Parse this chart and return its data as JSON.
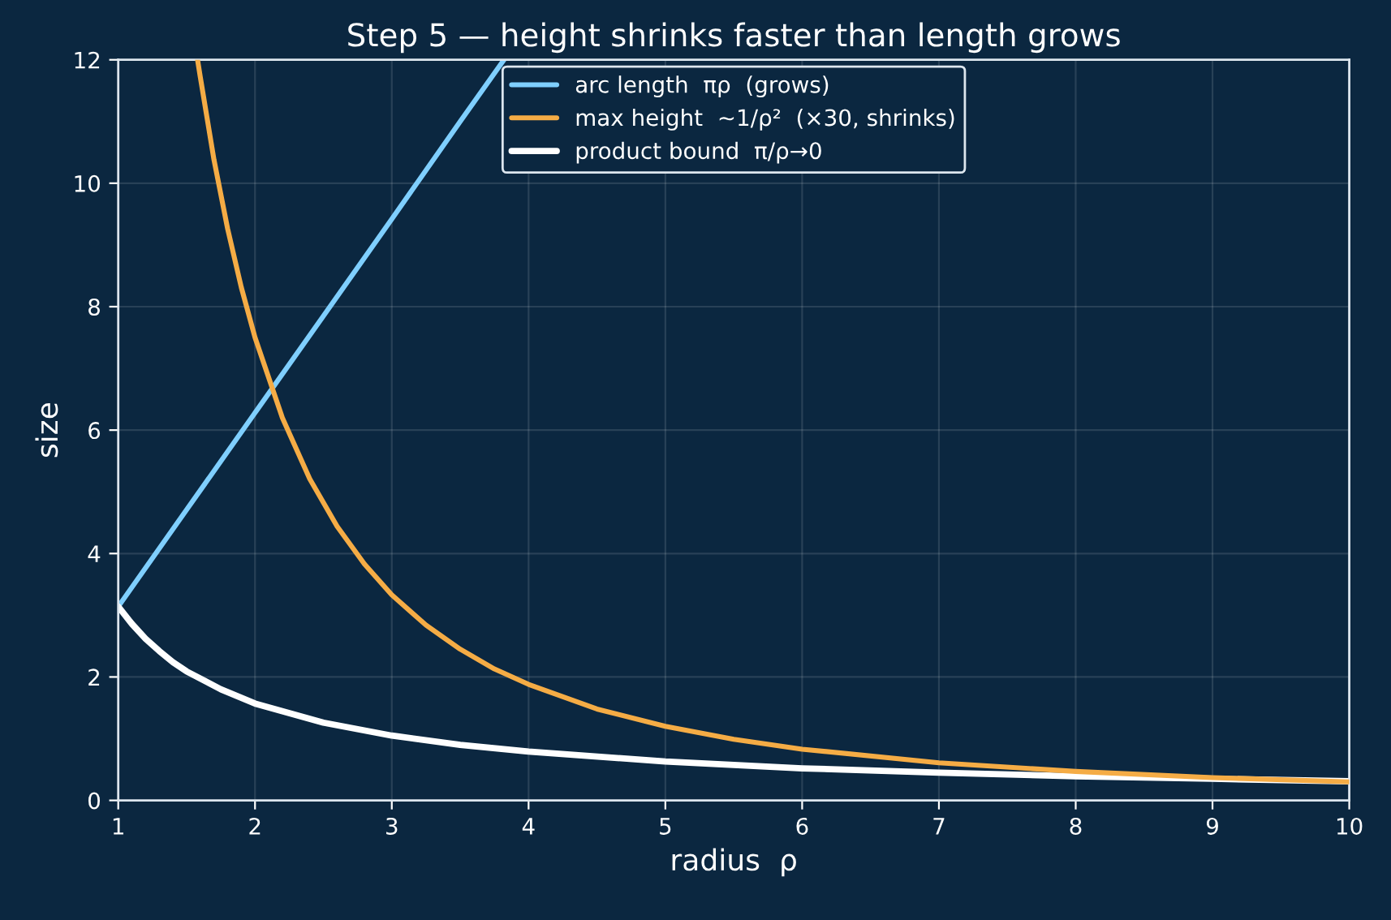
{
  "chart_data": {
    "type": "line",
    "title": "Step 5 — height shrinks faster than length grows",
    "xlabel": "radius  ρ",
    "ylabel": "size",
    "xlim": [
      1,
      10
    ],
    "ylim": [
      0,
      12
    ],
    "xticks": [
      1,
      2,
      3,
      4,
      5,
      6,
      7,
      8,
      9,
      10
    ],
    "yticks": [
      0,
      2,
      4,
      6,
      8,
      10,
      12
    ],
    "grid": true,
    "legend": "top",
    "series": [
      {
        "name": "arc length  πρ  (grows)",
        "color": "#7fcfff",
        "x": [
          1,
          1.5,
          2,
          2.5,
          3,
          3.5,
          3.82
        ],
        "values": [
          3.14,
          4.71,
          6.28,
          7.85,
          9.42,
          11.0,
          12.0
        ]
      },
      {
        "name": "max height  ~1/ρ²  (×30, shrinks)",
        "color": "#f5ac45",
        "x": [
          1.58,
          1.6,
          1.7,
          1.8,
          1.9,
          2.0,
          2.2,
          2.4,
          2.6,
          2.8,
          3.0,
          3.25,
          3.5,
          3.75,
          4,
          4.5,
          5,
          5.5,
          6,
          7,
          8,
          9,
          10
        ],
        "values": [
          12.0,
          11.72,
          10.38,
          9.26,
          8.31,
          7.5,
          6.2,
          5.21,
          4.44,
          3.83,
          3.33,
          2.84,
          2.45,
          2.13,
          1.88,
          1.48,
          1.2,
          0.99,
          0.83,
          0.61,
          0.47,
          0.37,
          0.3
        ]
      },
      {
        "name": "product bound  π/ρ→0",
        "color": "#ffffff",
        "x": [
          1,
          1.1,
          1.2,
          1.3,
          1.4,
          1.5,
          1.75,
          2,
          2.5,
          3,
          3.5,
          4,
          5,
          6,
          7,
          8,
          9,
          10
        ],
        "values": [
          3.14,
          2.86,
          2.62,
          2.42,
          2.24,
          2.09,
          1.8,
          1.57,
          1.26,
          1.05,
          0.9,
          0.79,
          0.63,
          0.52,
          0.45,
          0.39,
          0.35,
          0.31
        ]
      }
    ]
  }
}
